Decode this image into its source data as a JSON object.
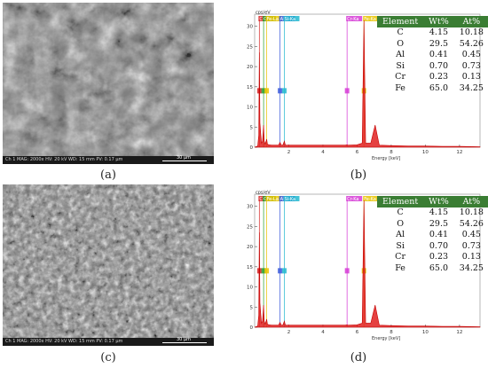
{
  "panels": [
    {
      "id": "a",
      "kind": "sem",
      "caption": "(a)",
      "footer_text": "Ch 1  MAG: 2000x  HV: 20 kV  WD: 15 mm   PV: 0.17 μm",
      "scale_label": "30 μm"
    },
    {
      "id": "b",
      "kind": "eds",
      "caption": "(b)",
      "y_unit": "cps/eV",
      "x_axis_label": "Energy [keV]",
      "table": {
        "headers": [
          "Element",
          "Wt%",
          "At%"
        ],
        "rows": [
          [
            "C",
            "4.15",
            "10.18"
          ],
          [
            "O",
            "29.5",
            "54.26"
          ],
          [
            "Al",
            "0.41",
            "0.45"
          ],
          [
            "Si",
            "0.70",
            "0.73"
          ],
          [
            "Cr",
            "0.23",
            "0.13"
          ],
          [
            "Fe",
            "65.0",
            "34.25"
          ]
        ]
      }
    },
    {
      "id": "c",
      "kind": "sem",
      "caption": "(c)",
      "footer_text": "Ch 1  MAG: 2000x  HV: 20 kV  WD: 15 mm   PV: 0.17 μm",
      "scale_label": "30 μm"
    },
    {
      "id": "d",
      "kind": "eds",
      "caption": "(d)",
      "y_unit": "cps/eV",
      "x_axis_label": "Energy [keV]",
      "table": {
        "headers": [
          "Element",
          "Wt%",
          "At%"
        ],
        "rows": [
          [
            "C",
            "4.15",
            "10.18"
          ],
          [
            "O",
            "29.5",
            "54.26"
          ],
          [
            "Al",
            "0.41",
            "0.45"
          ],
          [
            "Si",
            "0.70",
            "0.73"
          ],
          [
            "Cr",
            "0.23",
            "0.13"
          ],
          [
            "Fe",
            "65.0",
            "34.25"
          ]
        ]
      }
    }
  ],
  "chart_data": [
    {
      "type": "line",
      "panel": "b",
      "xlabel": "Energy [keV]",
      "ylabel": "cps/eV",
      "xlim": [
        0,
        13.2
      ],
      "ylim": [
        0,
        33
      ],
      "x_ticks": [
        2,
        4,
        6,
        8,
        10,
        12
      ],
      "y_ticks": [
        0,
        5,
        10,
        15,
        20,
        25,
        30
      ],
      "series": [
        {
          "x": [
            0.0,
            0.18,
            0.24,
            0.277,
            0.31,
            0.4,
            0.46,
            0.525,
            0.56,
            0.62,
            0.705,
            0.75,
            0.85,
            1.0,
            1.2,
            1.4,
            1.486,
            1.56,
            1.65,
            1.74,
            1.8,
            2.0,
            3.0,
            4.0,
            5.0,
            5.3,
            5.414,
            5.5,
            6.0,
            6.3,
            6.403,
            6.5,
            6.8,
            7.058,
            7.3,
            8.0,
            9.0,
            10.0,
            11.0,
            12.0,
            13.2
          ],
          "y": [
            0.0,
            0.3,
            3.0,
            23.5,
            6.0,
            1.0,
            1.5,
            5.5,
            1.5,
            0.8,
            2.0,
            0.7,
            0.6,
            0.5,
            0.5,
            0.5,
            1.2,
            0.5,
            0.5,
            1.5,
            0.5,
            0.5,
            0.5,
            0.5,
            0.5,
            0.5,
            0.6,
            0.5,
            0.6,
            1.0,
            31.5,
            1.0,
            1.0,
            5.5,
            0.5,
            0.4,
            0.3,
            0.3,
            0.2,
            0.2,
            0.1
          ]
        }
      ],
      "peak_labels": [
        {
          "text": "C-Ka",
          "x": 0.277,
          "color": "#d62828"
        },
        {
          "text": "O-Ka",
          "x": 0.525,
          "color": "#2a9d2a"
        },
        {
          "text": "Fe-La",
          "x": 0.705,
          "color": "#e9c400"
        },
        {
          "text": "Al-Ka",
          "x": 1.486,
          "color": "#3b5bdb"
        },
        {
          "text": "Si-Ka",
          "x": 1.74,
          "color": "#22b8cf"
        },
        {
          "text": "Cr-Ka",
          "x": 5.414,
          "color": "#d63bd6"
        },
        {
          "text": "Fe-Ka",
          "x": 6.403,
          "color": "#e9c400"
        }
      ]
    },
    {
      "type": "line",
      "panel": "d",
      "xlabel": "Energy [keV]",
      "ylabel": "cps/eV",
      "xlim": [
        0,
        13.2
      ],
      "ylim": [
        0,
        33
      ],
      "x_ticks": [
        2,
        4,
        6,
        8,
        10,
        12
      ],
      "y_ticks": [
        0,
        5,
        10,
        15,
        20,
        25,
        30
      ],
      "series": [
        {
          "x": [
            0.0,
            0.18,
            0.24,
            0.277,
            0.31,
            0.4,
            0.46,
            0.525,
            0.56,
            0.62,
            0.705,
            0.75,
            0.85,
            1.0,
            1.2,
            1.4,
            1.486,
            1.56,
            1.65,
            1.74,
            1.8,
            2.0,
            3.0,
            4.0,
            5.0,
            5.3,
            5.414,
            5.5,
            6.0,
            6.3,
            6.403,
            6.5,
            6.8,
            7.058,
            7.3,
            8.0,
            9.0,
            10.0,
            11.0,
            12.0,
            13.2
          ],
          "y": [
            0.0,
            0.3,
            3.0,
            23.5,
            6.0,
            1.0,
            1.5,
            5.5,
            1.5,
            0.8,
            2.0,
            0.7,
            0.6,
            0.5,
            0.5,
            0.5,
            1.2,
            0.5,
            0.5,
            1.5,
            0.5,
            0.5,
            0.5,
            0.5,
            0.5,
            0.5,
            0.6,
            0.5,
            0.6,
            1.0,
            31.5,
            1.0,
            1.0,
            5.5,
            0.5,
            0.4,
            0.3,
            0.3,
            0.2,
            0.2,
            0.1
          ]
        }
      ],
      "peak_labels": [
        {
          "text": "C-Ka",
          "x": 0.277,
          "color": "#d62828"
        },
        {
          "text": "O-Ka",
          "x": 0.525,
          "color": "#2a9d2a"
        },
        {
          "text": "Fe-La",
          "x": 0.705,
          "color": "#e9c400"
        },
        {
          "text": "Al-Ka",
          "x": 1.486,
          "color": "#3b5bdb"
        },
        {
          "text": "Si-Ka",
          "x": 1.74,
          "color": "#22b8cf"
        },
        {
          "text": "Cr-Ka",
          "x": 5.414,
          "color": "#d63bd6"
        },
        {
          "text": "Fe-Ka",
          "x": 6.403,
          "color": "#e9c400"
        }
      ]
    }
  ]
}
